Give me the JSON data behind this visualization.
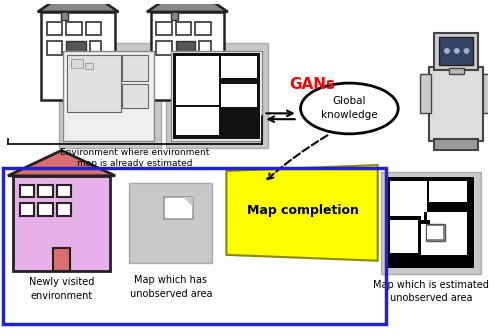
{
  "bg_color": "#ffffff",
  "blue_border_color": "#2222cc",
  "gray_bg": "#c0c0c0",
  "gray_light": "#d0d0d0",
  "house_roof_color": "#888888",
  "house_wall_color": "#ffffff",
  "pink_house_roof": "#d97070",
  "pink_house_wall": "#e8b0e8",
  "yellow_color": "#ffff00",
  "gans_color": "#ff0000",
  "arrow_color": "#000000",
  "text_color": "#000000",
  "title_text": "GANs",
  "global_knowledge_text": "Global\nknowledge",
  "env_label": "Environment where environment\nmap is already estimated",
  "newly_visited_label": "Newly visited\nenvironment",
  "map_unobserved_label": "Map which has\nunobserved area",
  "map_completion_label": "Map completion",
  "map_estimated_label": "Map which is estimated\nunobserved area",
  "figsize": [
    5.0,
    3.36
  ],
  "dpi": 100
}
